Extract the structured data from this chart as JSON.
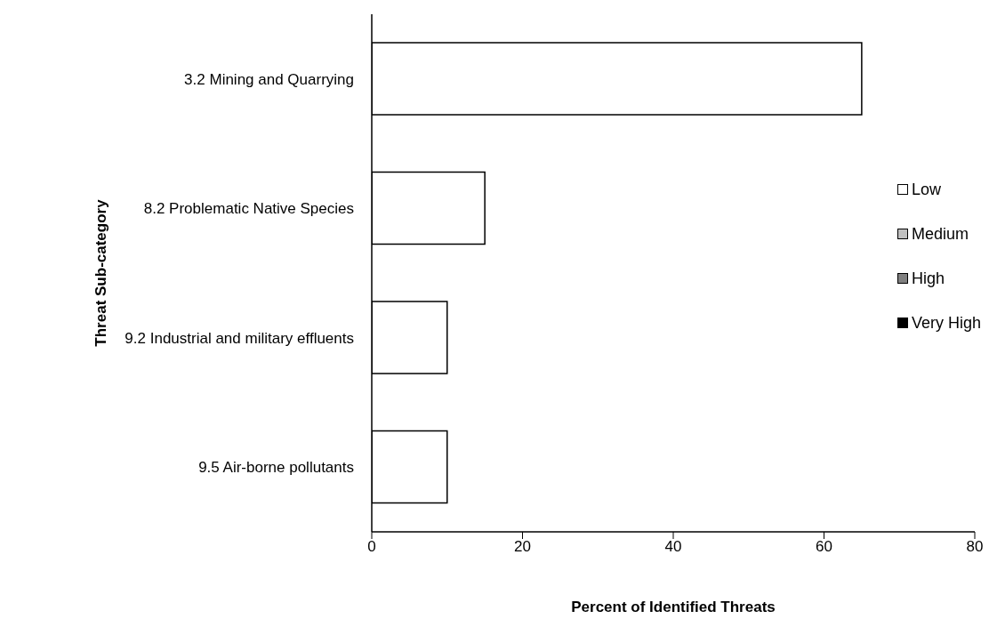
{
  "chart_data": {
    "type": "bar",
    "orientation": "horizontal",
    "stacked": true,
    "xlabel": "Percent of Identified Threats",
    "ylabel": "Threat Sub-category",
    "categories": [
      "3.2 Mining and Quarrying",
      "8.2 Problematic Native Species",
      "9.2 Industrial and military effluents",
      "9.5 Air-borne pollutants"
    ],
    "series": [
      {
        "name": "Low",
        "color": "#ffffff",
        "values": [
          65,
          15,
          10,
          10
        ]
      },
      {
        "name": "Medium",
        "color": "#c0c0c0",
        "values": [
          0,
          0,
          0,
          0
        ]
      },
      {
        "name": "High",
        "color": "#808080",
        "values": [
          0,
          0,
          0,
          0
        ]
      },
      {
        "name": "Very High",
        "color": "#000000",
        "values": [
          0,
          0,
          0,
          0
        ]
      }
    ],
    "xlim": [
      0,
      80
    ],
    "xticks": [
      0,
      20,
      40,
      60,
      80
    ],
    "grid": false,
    "legend": "right"
  }
}
